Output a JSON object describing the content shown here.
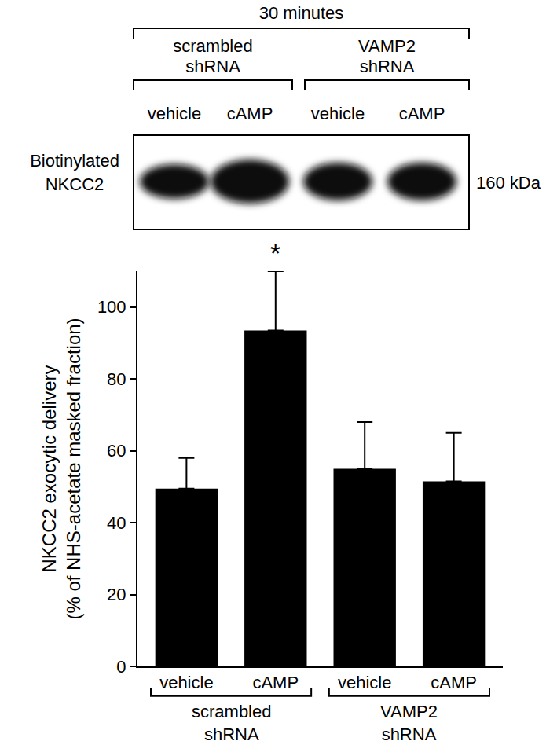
{
  "chart_data": {
    "type": "bar",
    "categories": [
      "vehicle",
      "cAMP",
      "vehicle",
      "cAMP"
    ],
    "groups": [
      {
        "label": "scrambled shRNA",
        "members": [
          0,
          1
        ]
      },
      {
        "label": "VAMP2 shRNA",
        "members": [
          2,
          3
        ]
      }
    ],
    "values": [
      49.5,
      93.5,
      55,
      51.5
    ],
    "errors": [
      8.5,
      16.5,
      13,
      13.5
    ],
    "color": "#000000",
    "y_label": "NKCC2 exocytic delivery (% of NHS-acetate masked fraction)",
    "ylim": [
      0,
      110
    ],
    "yticks": [
      0,
      20,
      40,
      60,
      80,
      100
    ],
    "grid": false,
    "annotations": [
      {
        "text": "*",
        "category": 1
      }
    ]
  },
  "blot": {
    "title": "30 minutes",
    "row_label": "Biotinylated NKCC2",
    "size_label": "160 kDa",
    "groups": [
      {
        "label": "scrambled shRNA",
        "lanes": [
          "vehicle",
          "cAMP"
        ]
      },
      {
        "label": "VAMP2 shRNA",
        "lanes": [
          "vehicle",
          "cAMP"
        ]
      }
    ]
  }
}
